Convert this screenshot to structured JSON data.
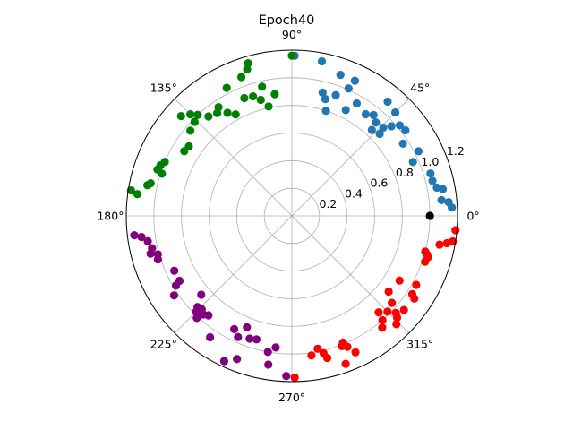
{
  "chart_data": {
    "type": "scatter",
    "projection": "polar",
    "title": "Epoch40",
    "theta_tick_labels": [
      "0°",
      "45°",
      "90°",
      "135°",
      "180°",
      "225°",
      "270°",
      "315°"
    ],
    "r_ticks": [
      0.2,
      0.4,
      0.6,
      0.8,
      1.0,
      1.2
    ],
    "r_tick_labels": [
      "0.2",
      "0.4",
      "0.6",
      "0.8",
      "1.0",
      "1.2"
    ],
    "r_label_angle_deg": 22.5,
    "rlim": [
      0,
      1.2
    ],
    "grid": true,
    "series": [
      {
        "color": "#1f77b4",
        "points": [
          {
            "theta": 3,
            "r": 1.16
          },
          {
            "theta": 5,
            "r": 1.14
          },
          {
            "theta": 6,
            "r": 1.09
          },
          {
            "theta": 10,
            "r": 1.11
          },
          {
            "theta": 11,
            "r": 1.07
          },
          {
            "theta": 14,
            "r": 1.05
          },
          {
            "theta": 17,
            "r": 1.05
          },
          {
            "theta": 24,
            "r": 0.96
          },
          {
            "theta": 27,
            "r": 1.03
          },
          {
            "theta": 33,
            "r": 0.96
          },
          {
            "theta": 37,
            "r": 1.03
          },
          {
            "theta": 40,
            "r": 1.02
          },
          {
            "theta": 42,
            "r": 0.97
          },
          {
            "theta": 43,
            "r": 0.87
          },
          {
            "theta": 44,
            "r": 0.92
          },
          {
            "theta": 45,
            "r": 1.06
          },
          {
            "theta": 47,
            "r": 0.85
          },
          {
            "theta": 48,
            "r": 0.91
          },
          {
            "theta": 50,
            "r": 1.08
          },
          {
            "theta": 51,
            "r": 0.94
          },
          {
            "theta": 54,
            "r": 0.91
          },
          {
            "theta": 60,
            "r": 0.94
          },
          {
            "theta": 63,
            "r": 0.86
          },
          {
            "theta": 65,
            "r": 1.08
          },
          {
            "theta": 66,
            "r": 1.01
          },
          {
            "theta": 70,
            "r": 0.93
          },
          {
            "theta": 71,
            "r": 1.08
          },
          {
            "theta": 72,
            "r": 0.8
          },
          {
            "theta": 74,
            "r": 0.88
          },
          {
            "theta": 76,
            "r": 0.92
          },
          {
            "theta": 79,
            "r": 1.14
          },
          {
            "theta": 89,
            "r": 1.16
          }
        ]
      },
      {
        "color": "#008000",
        "points": [
          {
            "theta": 90,
            "r": 1.16
          },
          {
            "theta": 98,
            "r": 0.89
          },
          {
            "theta": 102,
            "r": 0.81
          },
          {
            "theta": 103,
            "r": 0.96
          },
          {
            "theta": 105,
            "r": 0.87
          },
          {
            "theta": 106,
            "r": 1.15
          },
          {
            "theta": 107,
            "r": 1.11
          },
          {
            "theta": 108,
            "r": 0.91
          },
          {
            "theta": 110,
            "r": 1.07
          },
          {
            "theta": 112,
            "r": 0.92
          },
          {
            "theta": 117,
            "r": 1.04
          },
          {
            "theta": 119,
            "r": 0.84
          },
          {
            "theta": 122,
            "r": 0.88
          },
          {
            "theta": 124,
            "r": 0.95
          },
          {
            "theta": 126,
            "r": 0.92
          },
          {
            "theta": 130,
            "r": 0.94
          },
          {
            "theta": 133,
            "r": 1.0
          },
          {
            "theta": 135,
            "r": 1.04
          },
          {
            "theta": 136,
            "r": 0.98
          },
          {
            "theta": 138,
            "r": 1.08
          },
          {
            "theta": 140,
            "r": 0.96
          },
          {
            "theta": 146,
            "r": 0.9
          },
          {
            "theta": 149,
            "r": 0.91
          },
          {
            "theta": 157,
            "r": 1.0
          },
          {
            "theta": 159,
            "r": 1.02
          },
          {
            "theta": 161,
            "r": 1.03
          },
          {
            "theta": 162,
            "r": 0.99
          },
          {
            "theta": 167,
            "r": 1.05
          },
          {
            "theta": 168,
            "r": 1.07
          },
          {
            "theta": 171,
            "r": 1.18
          },
          {
            "theta": 172,
            "r": 1.13
          }
        ]
      },
      {
        "color": "#800080",
        "points": [
          {
            "theta": 187,
            "r": 1.15
          },
          {
            "theta": 188,
            "r": 1.1
          },
          {
            "theta": 190,
            "r": 1.06
          },
          {
            "theta": 193,
            "r": 1.04
          },
          {
            "theta": 195,
            "r": 1.06
          },
          {
            "theta": 196,
            "r": 1.01
          },
          {
            "theta": 198,
            "r": 1.02
          },
          {
            "theta": 205,
            "r": 0.94
          },
          {
            "theta": 210,
            "r": 0.94
          },
          {
            "theta": 211,
            "r": 0.98
          },
          {
            "theta": 214,
            "r": 1.03
          },
          {
            "theta": 221,
            "r": 0.87
          },
          {
            "theta": 224,
            "r": 0.95
          },
          {
            "theta": 225,
            "r": 0.98
          },
          {
            "theta": 226,
            "r": 0.94
          },
          {
            "theta": 227,
            "r": 1.01
          },
          {
            "theta": 228,
            "r": 0.96
          },
          {
            "theta": 230,
            "r": 0.94
          },
          {
            "theta": 236,
            "r": 1.06
          },
          {
            "theta": 243,
            "r": 0.92
          },
          {
            "theta": 245,
            "r": 1.16
          },
          {
            "theta": 246,
            "r": 0.96
          },
          {
            "theta": 248,
            "r": 0.87
          },
          {
            "theta": 249,
            "r": 1.11
          },
          {
            "theta": 251,
            "r": 0.94
          },
          {
            "theta": 254,
            "r": 0.93
          },
          {
            "theta": 260,
            "r": 1.0
          },
          {
            "theta": 261,
            "r": 1.09
          },
          {
            "theta": 263,
            "r": 0.96
          },
          {
            "theta": 268,
            "r": 1.16
          }
        ]
      },
      {
        "color": "#ff0000",
        "points": [
          {
            "theta": 271,
            "r": 1.17
          },
          {
            "theta": 278,
            "r": 1.02
          },
          {
            "theta": 281,
            "r": 0.98
          },
          {
            "theta": 283,
            "r": 1.02
          },
          {
            "theta": 284,
            "r": 1.06
          },
          {
            "theta": 290,
            "r": 1.14
          },
          {
            "theta": 291,
            "r": 1.01
          },
          {
            "theta": 292,
            "r": 0.99
          },
          {
            "theta": 293,
            "r": 1.03
          },
          {
            "theta": 295,
            "r": 1.09
          },
          {
            "theta": 309,
            "r": 1.04
          },
          {
            "theta": 311,
            "r": 1.0
          },
          {
            "theta": 312,
            "r": 0.94
          },
          {
            "theta": 314,
            "r": 1.09
          },
          {
            "theta": 315,
            "r": 0.98
          },
          {
            "theta": 316,
            "r": 1.06
          },
          {
            "theta": 317,
            "r": 1.03
          },
          {
            "theta": 319,
            "r": 0.96
          },
          {
            "theta": 320,
            "r": 1.06
          },
          {
            "theta": 322,
            "r": 0.89
          },
          {
            "theta": 326,
            "r": 1.07
          },
          {
            "theta": 327,
            "r": 1.04
          },
          {
            "theta": 329,
            "r": 0.91
          },
          {
            "theta": 331,
            "r": 1.03
          },
          {
            "theta": 341,
            "r": 1.02
          },
          {
            "theta": 343,
            "r": 1.03
          },
          {
            "theta": 344,
            "r": 1.02
          },
          {
            "theta": 345,
            "r": 1.0
          },
          {
            "theta": 349,
            "r": 1.09
          },
          {
            "theta": 350,
            "r": 1.14
          },
          {
            "theta": 351,
            "r": 1.18
          },
          {
            "theta": 355,
            "r": 1.19
          }
        ]
      },
      {
        "color": "#000000",
        "points": [
          {
            "theta": 0,
            "r": 1.0
          }
        ]
      }
    ]
  }
}
